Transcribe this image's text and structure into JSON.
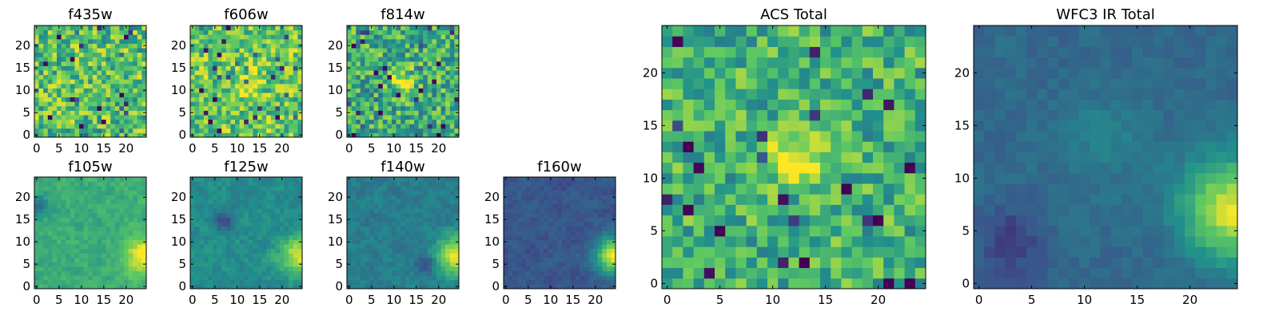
{
  "figure": {
    "colormap": "viridis",
    "colormap_stops": [
      "#440154",
      "#3b528b",
      "#21918c",
      "#5ec962",
      "#fde725"
    ]
  },
  "chart_data": [
    {
      "type": "heatmap",
      "title": "f435w",
      "xticks": [
        "0",
        "5",
        "10",
        "15",
        "20"
      ],
      "yticks": [
        "0",
        "5",
        "10",
        "15",
        "20"
      ],
      "xlim": [
        -0.5,
        24.5
      ],
      "ylim": [
        -0.5,
        24.5
      ],
      "grid": false,
      "pattern": "noisy bright, green-yellow, little structure"
    },
    {
      "type": "heatmap",
      "title": "f606w",
      "xticks": [
        "0",
        "5",
        "10",
        "15",
        "20"
      ],
      "yticks": [
        "0",
        "5",
        "10",
        "15",
        "20"
      ],
      "xlim": [
        -0.5,
        24.5
      ],
      "ylim": [
        -0.5,
        24.5
      ],
      "grid": false,
      "pattern": "noisy bright, faint center source"
    },
    {
      "type": "heatmap",
      "title": "f814w",
      "xticks": [
        "0",
        "5",
        "10",
        "15",
        "20"
      ],
      "yticks": [
        "0",
        "5",
        "10",
        "15",
        "20"
      ],
      "xlim": [
        -0.5,
        24.5
      ],
      "ylim": [
        -0.5,
        24.5
      ],
      "grid": false,
      "pattern": "noisy, bright source near (12,12)"
    },
    {
      "type": "heatmap",
      "title": "f105w",
      "xticks": [
        "0",
        "5",
        "10",
        "15",
        "20"
      ],
      "yticks": [
        "0",
        "5",
        "10",
        "15",
        "20"
      ],
      "xlim": [
        -0.5,
        24.5
      ],
      "ylim": [
        -0.5,
        24.5
      ],
      "grid": false,
      "pattern": "smooth green, bright right edge"
    },
    {
      "type": "heatmap",
      "title": "f125w",
      "xticks": [
        "0",
        "5",
        "10",
        "15",
        "20"
      ],
      "yticks": [
        "0",
        "5",
        "10",
        "15",
        "20"
      ],
      "xlim": [
        -0.5,
        24.5
      ],
      "ylim": [
        -0.5,
        24.5
      ],
      "grid": false,
      "pattern": "teal, bright right edge"
    },
    {
      "type": "heatmap",
      "title": "f140w",
      "xticks": [
        "0",
        "5",
        "10",
        "15",
        "20"
      ],
      "yticks": [
        "0",
        "5",
        "10",
        "15",
        "20"
      ],
      "xlim": [
        -0.5,
        24.5
      ],
      "ylim": [
        -0.5,
        24.5
      ],
      "grid": false,
      "pattern": "blue-teal, bright right edge"
    },
    {
      "type": "heatmap",
      "title": "f160w",
      "xticks": [
        "0",
        "5",
        "10",
        "15",
        "20"
      ],
      "yticks": [
        "0",
        "5",
        "10",
        "15",
        "20"
      ],
      "xlim": [
        -0.5,
        24.5
      ],
      "ylim": [
        -0.5,
        24.5
      ],
      "grid": false,
      "pattern": "dark blue-purple, bright right edge"
    },
    {
      "type": "heatmap",
      "title": "ACS Total",
      "xticks": [
        "0",
        "5",
        "10",
        "15",
        "20"
      ],
      "yticks": [
        "0",
        "5",
        "10",
        "15",
        "20"
      ],
      "xlim": [
        -0.5,
        24.5
      ],
      "ylim": [
        -0.5,
        24.5
      ],
      "grid": false,
      "pattern": "green noise, bright yellow source at center (12,12)"
    },
    {
      "type": "heatmap",
      "title": "WFC3 IR Total",
      "xticks": [
        "0",
        "5",
        "10",
        "15",
        "20"
      ],
      "yticks": [
        "0",
        "5",
        "10",
        "15",
        "20"
      ],
      "xlim": [
        -0.5,
        24.5
      ],
      "ylim": [
        -0.5,
        24.5
      ],
      "grid": false,
      "pattern": "dark blue background, yellow gradient at right edge near (24,7)"
    }
  ]
}
